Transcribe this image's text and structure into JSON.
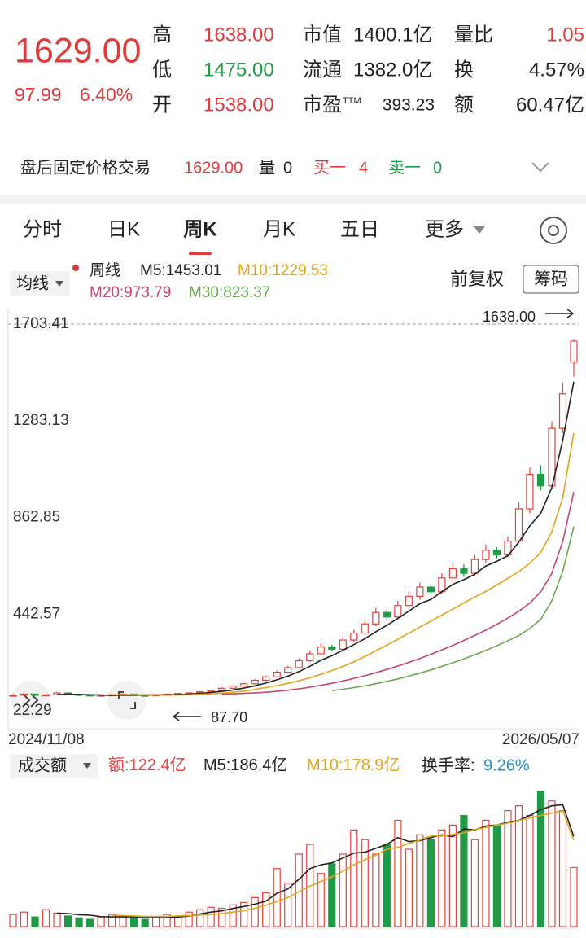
{
  "quote": {
    "price": "1629.00",
    "change": "97.99",
    "change_pct": "6.40%",
    "stats": [
      [
        "高",
        "1638.00",
        "市值",
        "1400.1亿",
        "量比",
        "1.05"
      ],
      [
        "低",
        "1475.00",
        "流通",
        "1382.0亿",
        "换",
        "4.57%"
      ],
      [
        "开",
        "1538.00",
        "市盈",
        "393.23",
        "额",
        "60.47亿"
      ]
    ],
    "pe_suffix": "TTM"
  },
  "after_hours": {
    "label": "盘后固定价格交易",
    "price": "1629.00",
    "vol_label": "量",
    "vol": "0",
    "bid_label": "买一",
    "bid": "4",
    "ask_label": "卖一",
    "ask": "0"
  },
  "tabs": [
    "分时",
    "日K",
    "周K",
    "月K",
    "五日",
    "更多"
  ],
  "controls": {
    "ma_button": "均线",
    "period": "周线",
    "adjust": "前复权",
    "chips": "筹码",
    "volume_button": "成交额",
    "turnover_label": "换手率:",
    "turnover": "9.26%"
  },
  "chart_data": [
    {
      "type": "candlestick",
      "up_color": "#e8403c",
      "down_color": "#1f9a45",
      "candles": [
        [
          88,
          96,
          88,
          90
        ],
        [
          90,
          98,
          88.5,
          95
        ],
        [
          95,
          97,
          89,
          90
        ],
        [
          90,
          94,
          88,
          92
        ],
        [
          92,
          104,
          90,
          100
        ],
        [
          100,
          101,
          92,
          94
        ],
        [
          94,
          96,
          89,
          91
        ],
        [
          91,
          92,
          88,
          89
        ],
        [
          89,
          92,
          88.5,
          90
        ],
        [
          88,
          94,
          88,
          92
        ],
        [
          92,
          97,
          90,
          95
        ],
        [
          95,
          96,
          88.5,
          90
        ],
        [
          90,
          91,
          88,
          89
        ],
        [
          89,
          94,
          88.5,
          92
        ],
        [
          92,
          97,
          87.7,
          95
        ],
        [
          95,
          100,
          93,
          98
        ],
        [
          98,
          103,
          96,
          100
        ],
        [
          100,
          108,
          98,
          105
        ],
        [
          105,
          113,
          103,
          110
        ],
        [
          110,
          124,
          108,
          120
        ],
        [
          120,
          134,
          118,
          130
        ],
        [
          130,
          145,
          127,
          140
        ],
        [
          140,
          160,
          137,
          155
        ],
        [
          155,
          175,
          150,
          170
        ],
        [
          170,
          198,
          166,
          190
        ],
        [
          190,
          218,
          185,
          210
        ],
        [
          210,
          250,
          205,
          240
        ],
        [
          240,
          285,
          235,
          270
        ],
        [
          270,
          315,
          262,
          300
        ],
        [
          300,
          310,
          280,
          290
        ],
        [
          290,
          345,
          285,
          330
        ],
        [
          330,
          375,
          320,
          360
        ],
        [
          360,
          420,
          350,
          400
        ],
        [
          400,
          470,
          390,
          450
        ],
        [
          450,
          465,
          420,
          430
        ],
        [
          430,
          500,
          420,
          480
        ],
        [
          480,
          540,
          470,
          520
        ],
        [
          520,
          580,
          505,
          560
        ],
        [
          560,
          575,
          530,
          540
        ],
        [
          540,
          620,
          530,
          600
        ],
        [
          600,
          665,
          585,
          640
        ],
        [
          640,
          660,
          605,
          620
        ],
        [
          620,
          700,
          610,
          680
        ],
        [
          680,
          745,
          665,
          720
        ],
        [
          720,
          735,
          685,
          700
        ],
        [
          700,
          780,
          690,
          760
        ],
        [
          760,
          930,
          750,
          900
        ],
        [
          900,
          1080,
          880,
          1050
        ],
        [
          1050,
          1090,
          980,
          1000
        ],
        [
          1000,
          1280,
          990,
          1250
        ],
        [
          1250,
          1450,
          1230,
          1400
        ],
        [
          1538,
          1638,
          1475,
          1629
        ]
      ],
      "series": [
        {
          "name": "M5:",
          "color": "#222222",
          "values": [
            null,
            null,
            null,
            null,
            93,
            94,
            93,
            92,
            91,
            90,
            90,
            90,
            91,
            91,
            92,
            93,
            95,
            98,
            102,
            107,
            113,
            121,
            131,
            143,
            157,
            173,
            193,
            216,
            242,
            262,
            286,
            310,
            336,
            366,
            394,
            424,
            456,
            488,
            506,
            540,
            572,
            592,
            616,
            652,
            672,
            696,
            756,
            826,
            882,
            992,
            1200,
            1453.01
          ]
        },
        {
          "name": "M10:",
          "color": "#e3a21a",
          "values": [
            null,
            null,
            null,
            null,
            null,
            null,
            null,
            null,
            null,
            92,
            92,
            92,
            91,
            91,
            91,
            91,
            92,
            94,
            96,
            99,
            103,
            108,
            115,
            123,
            132,
            142,
            153,
            166,
            181,
            197,
            215,
            235,
            258,
            283,
            308,
            333,
            360,
            386,
            412,
            438,
            464,
            491,
            517,
            541,
            569,
            598,
            627,
            664,
            711,
            800,
            950,
            1229.53
          ]
        },
        {
          "name": "M20:",
          "color": "#c4456e",
          "values": [
            null,
            null,
            null,
            null,
            null,
            null,
            null,
            null,
            null,
            null,
            null,
            null,
            null,
            null,
            null,
            null,
            null,
            null,
            null,
            94,
            96,
            98,
            100,
            103,
            107,
            112,
            118,
            125,
            133,
            142,
            152,
            163,
            175,
            188,
            202,
            217,
            233,
            250,
            268,
            287,
            307,
            328,
            350,
            373,
            398,
            425,
            455,
            490,
            540,
            620,
            760,
            973.79
          ]
        },
        {
          "name": "M30:",
          "color": "#6aa84f",
          "values": [
            null,
            null,
            null,
            null,
            null,
            null,
            null,
            null,
            null,
            null,
            null,
            null,
            null,
            null,
            null,
            null,
            null,
            null,
            null,
            null,
            null,
            null,
            null,
            null,
            null,
            null,
            null,
            null,
            null,
            110,
            116,
            123,
            131,
            140,
            150,
            161,
            173,
            186,
            200,
            215,
            231,
            248,
            266,
            285,
            305,
            326,
            350,
            380,
            420,
            500,
            630,
            823.37
          ]
        }
      ],
      "ylim": [
        22.29,
        1703.41
      ],
      "yticks": [
        1703.41,
        1283.13,
        862.85,
        442.57,
        22.29
      ],
      "x_labels": [
        "2024/11/08",
        "2026/05/07"
      ],
      "high_label": "1638.00",
      "low_label": "87.70"
    },
    {
      "type": "bar",
      "unit": "亿",
      "ylim": [
        0,
        300
      ],
      "series": [
        {
          "name": "额:",
          "color": "#e8403c",
          "values": [
            25,
            30,
            20,
            35,
            28,
            22,
            18,
            15,
            20,
            25,
            22,
            18,
            15,
            20,
            25,
            20,
            30,
            35,
            40,
            38,
            45,
            50,
            60,
            70,
            120,
            90,
            150,
            170,
            110,
            130,
            150,
            200,
            180,
            150,
            170,
            220,
            160,
            190,
            180,
            200,
            210,
            230,
            180,
            220,
            210,
            240,
            250,
            230,
            280,
            260,
            240,
            122.4
          ]
        },
        {
          "name": "M5:",
          "color": "#222222",
          "values": [
            null,
            null,
            null,
            null,
            27.6,
            27,
            24.6,
            23.6,
            20.6,
            20,
            20,
            20,
            20,
            20,
            20,
            19.6,
            22,
            26,
            30,
            32.6,
            37.6,
            41.6,
            46.6,
            52.6,
            69,
            78,
            98,
            120,
            128,
            132,
            142,
            152,
            154,
            162,
            170,
            184,
            176,
            178,
            184,
            190,
            186,
            202,
            200,
            208,
            210,
            216,
            220,
            230,
            242,
            250,
            252,
            186.4
          ]
        },
        {
          "name": "M10:",
          "color": "#e3a21a",
          "values": [
            null,
            null,
            null,
            null,
            null,
            null,
            null,
            null,
            null,
            24,
            23,
            22,
            21,
            21,
            21,
            22,
            23,
            24,
            25,
            27,
            30,
            33,
            38,
            44,
            52,
            60,
            72,
            84,
            93,
            103,
            115,
            128,
            138,
            148,
            160,
            164,
            172,
            179,
            188,
            187,
            191,
            194,
            201,
            205,
            210,
            214,
            220,
            225,
            230,
            235,
            240,
            178.9
          ]
        }
      ]
    }
  ]
}
